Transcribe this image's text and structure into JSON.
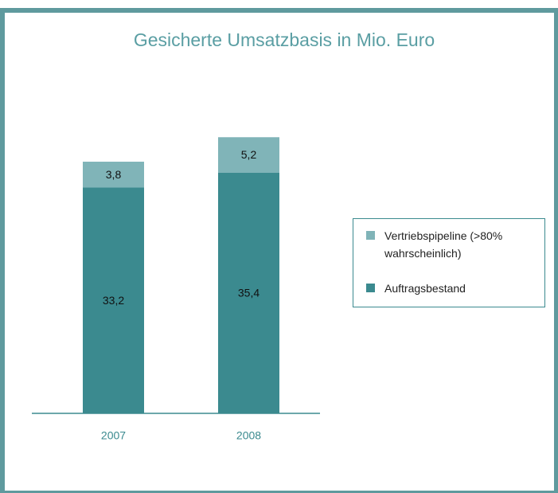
{
  "chart_data": {
    "type": "stacked_bar",
    "title": "Gesicherte Umsatzbasis in Mio. Euro",
    "categories": [
      "2007",
      "2008"
    ],
    "series": [
      {
        "name": "Auftragsbestand",
        "color": "#3b8a8f",
        "values": [
          33.2,
          35.4
        ],
        "value_labels": [
          "33,2",
          "35,4"
        ]
      },
      {
        "name": "Vertriebspipeline (>80% wahrscheinlich)",
        "color": "#80b4b8",
        "values": [
          3.8,
          5.2
        ],
        "value_labels": [
          "3,8",
          "5,2"
        ]
      }
    ]
  }
}
